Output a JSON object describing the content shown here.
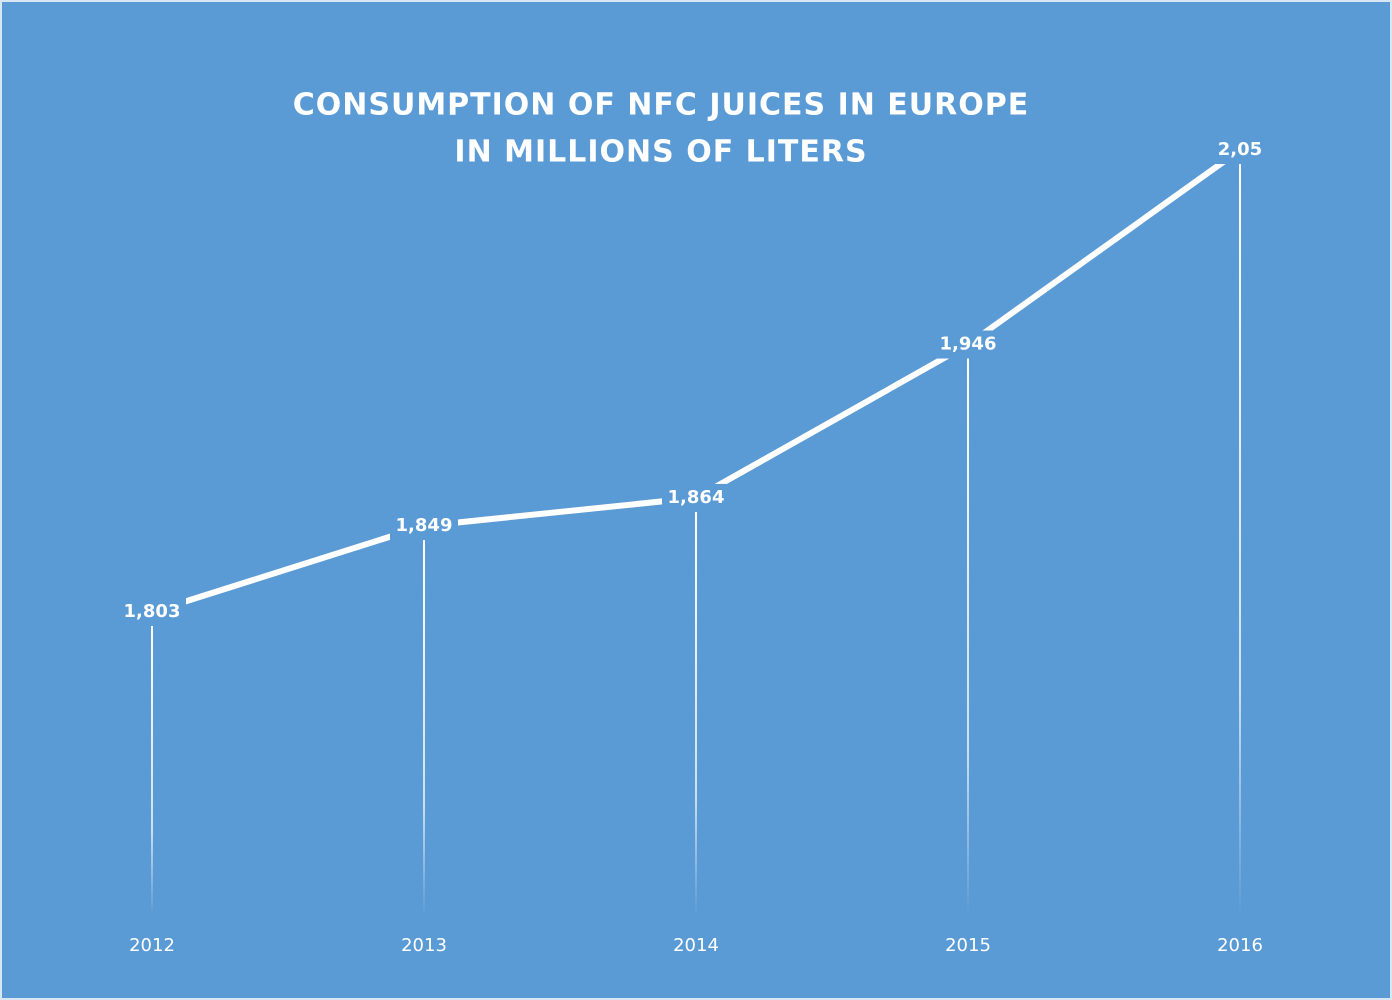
{
  "chart_data": {
    "type": "line",
    "title": "CONSUMPTION  OF NFC JUICES IN  EUROPE",
    "subtitle": "IN  MILLIONS  OF LITERS",
    "categories": [
      "2012",
      "2013",
      "2014",
      "2015",
      "2016"
    ],
    "series": [
      {
        "color": "#ffffff",
        "values": [
          1.803,
          1.849,
          1.864,
          1.946,
          2.05
        ],
        "value_labels": [
          "1,803",
          "1,849",
          "1,864",
          "1,946",
          "2,05"
        ]
      }
    ],
    "background": "#5b9bd5"
  }
}
